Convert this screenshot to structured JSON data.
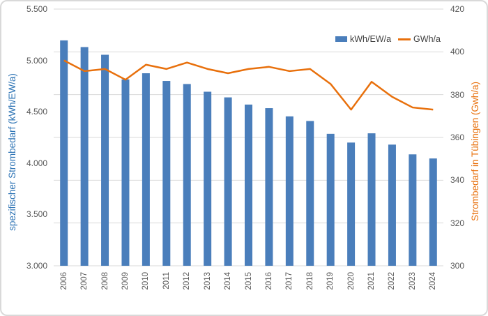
{
  "chart_data": {
    "type": "combo-bar-line",
    "title": "",
    "categories": [
      "2006",
      "2007",
      "2008",
      "2009",
      "2010",
      "2011",
      "2012",
      "2013",
      "2014",
      "2015",
      "2016",
      "2017",
      "2018",
      "2019",
      "2020",
      "2021",
      "2022",
      "2023",
      "2024"
    ],
    "series": [
      {
        "name": "kWh/EW/a",
        "type": "bar",
        "axis": "left",
        "color": "#4a7ebb",
        "values": [
          5195,
          5130,
          5055,
          4815,
          4875,
          4800,
          4770,
          4695,
          4640,
          4570,
          4535,
          4455,
          4410,
          4285,
          4200,
          4290,
          4180,
          4085,
          4045
        ]
      },
      {
        "name": "GWh/a",
        "type": "line",
        "axis": "right",
        "color": "#e8700c",
        "values": [
          396,
          391,
          392,
          387,
          394,
          392,
          395,
          392,
          390,
          392,
          393,
          391,
          392,
          385,
          373,
          386,
          379,
          374,
          373
        ]
      }
    ],
    "left_axis": {
      "title": "spezifischer Strombedarf (kWh/EW/a)",
      "min": 3000,
      "max": 5500,
      "tick_values": [
        5500,
        5000,
        4500,
        4000,
        3500,
        3000
      ],
      "tick_labels": [
        "5.500",
        "5.000",
        "4.500",
        "4.000",
        "3.500",
        "3.000"
      ],
      "color": "#2e74b5"
    },
    "right_axis": {
      "title": "Strombedarf in Tübingen (Gwh/a)",
      "min": 300,
      "max": 420,
      "tick_values": [
        420,
        400,
        380,
        360,
        340,
        320,
        300
      ],
      "tick_labels": [
        "420",
        "400",
        "380",
        "360",
        "340",
        "320",
        "300"
      ],
      "color": "#e8700c"
    },
    "grid": {
      "show": true,
      "color": "#d9d9d9",
      "follows": "right-axis"
    },
    "legend_position": "top-right",
    "background": "#ffffff"
  }
}
